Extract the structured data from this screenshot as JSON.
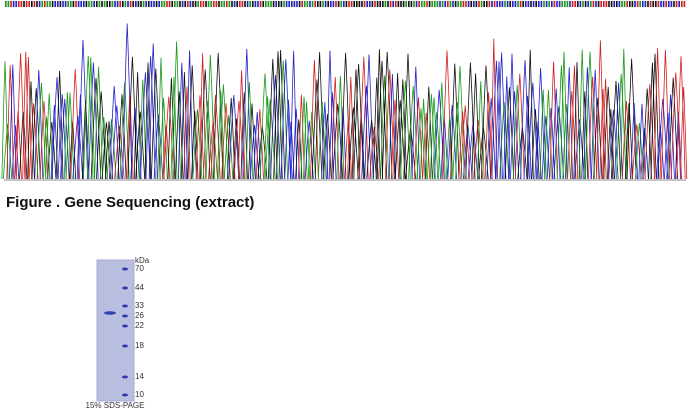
{
  "figure": {
    "caption": "Figure . Gene Sequencing (extract)"
  },
  "gel": {
    "unit": "kDa",
    "markers": [
      70,
      44,
      33,
      26,
      22,
      18,
      14,
      10
    ],
    "caption": "15% SDS-PAGE"
  }
}
